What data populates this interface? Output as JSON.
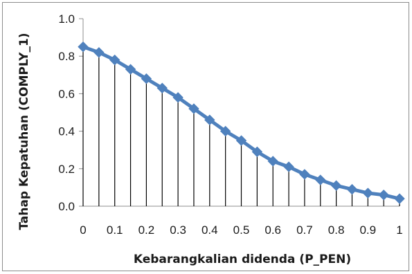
{
  "chart_data": {
    "type": "line",
    "xlabel": "Kebarangkalian didenda (P_PEN)",
    "ylabel": "Tahap Kepatuhan (COMPLY_1)",
    "xlim": [
      0,
      1
    ],
    "ylim": [
      0,
      1
    ],
    "x_ticks": [
      "0",
      "0.1",
      "0.2",
      "0.3",
      "0.4",
      "0.5",
      "0.6",
      "0.7",
      "0.8",
      "0.9",
      "1"
    ],
    "y_ticks": [
      "0.0",
      "0.2",
      "0.4",
      "0.6",
      "0.8",
      "1.0"
    ],
    "drop_lines": true,
    "grid": false,
    "legend": "none",
    "marker": "diamond",
    "line_color": "#4f81bd",
    "marker_color": "#4f81bd",
    "series": [
      {
        "x": [
          0,
          0.05,
          0.1,
          0.15,
          0.2,
          0.25,
          0.3,
          0.35,
          0.4,
          0.45,
          0.5,
          0.55,
          0.6,
          0.65,
          0.7,
          0.75,
          0.8,
          0.85,
          0.9,
          0.95,
          1.0
        ],
        "values": [
          0.85,
          0.82,
          0.78,
          0.73,
          0.68,
          0.63,
          0.58,
          0.52,
          0.46,
          0.4,
          0.35,
          0.29,
          0.24,
          0.21,
          0.17,
          0.14,
          0.11,
          0.09,
          0.07,
          0.06,
          0.04
        ]
      }
    ]
  }
}
